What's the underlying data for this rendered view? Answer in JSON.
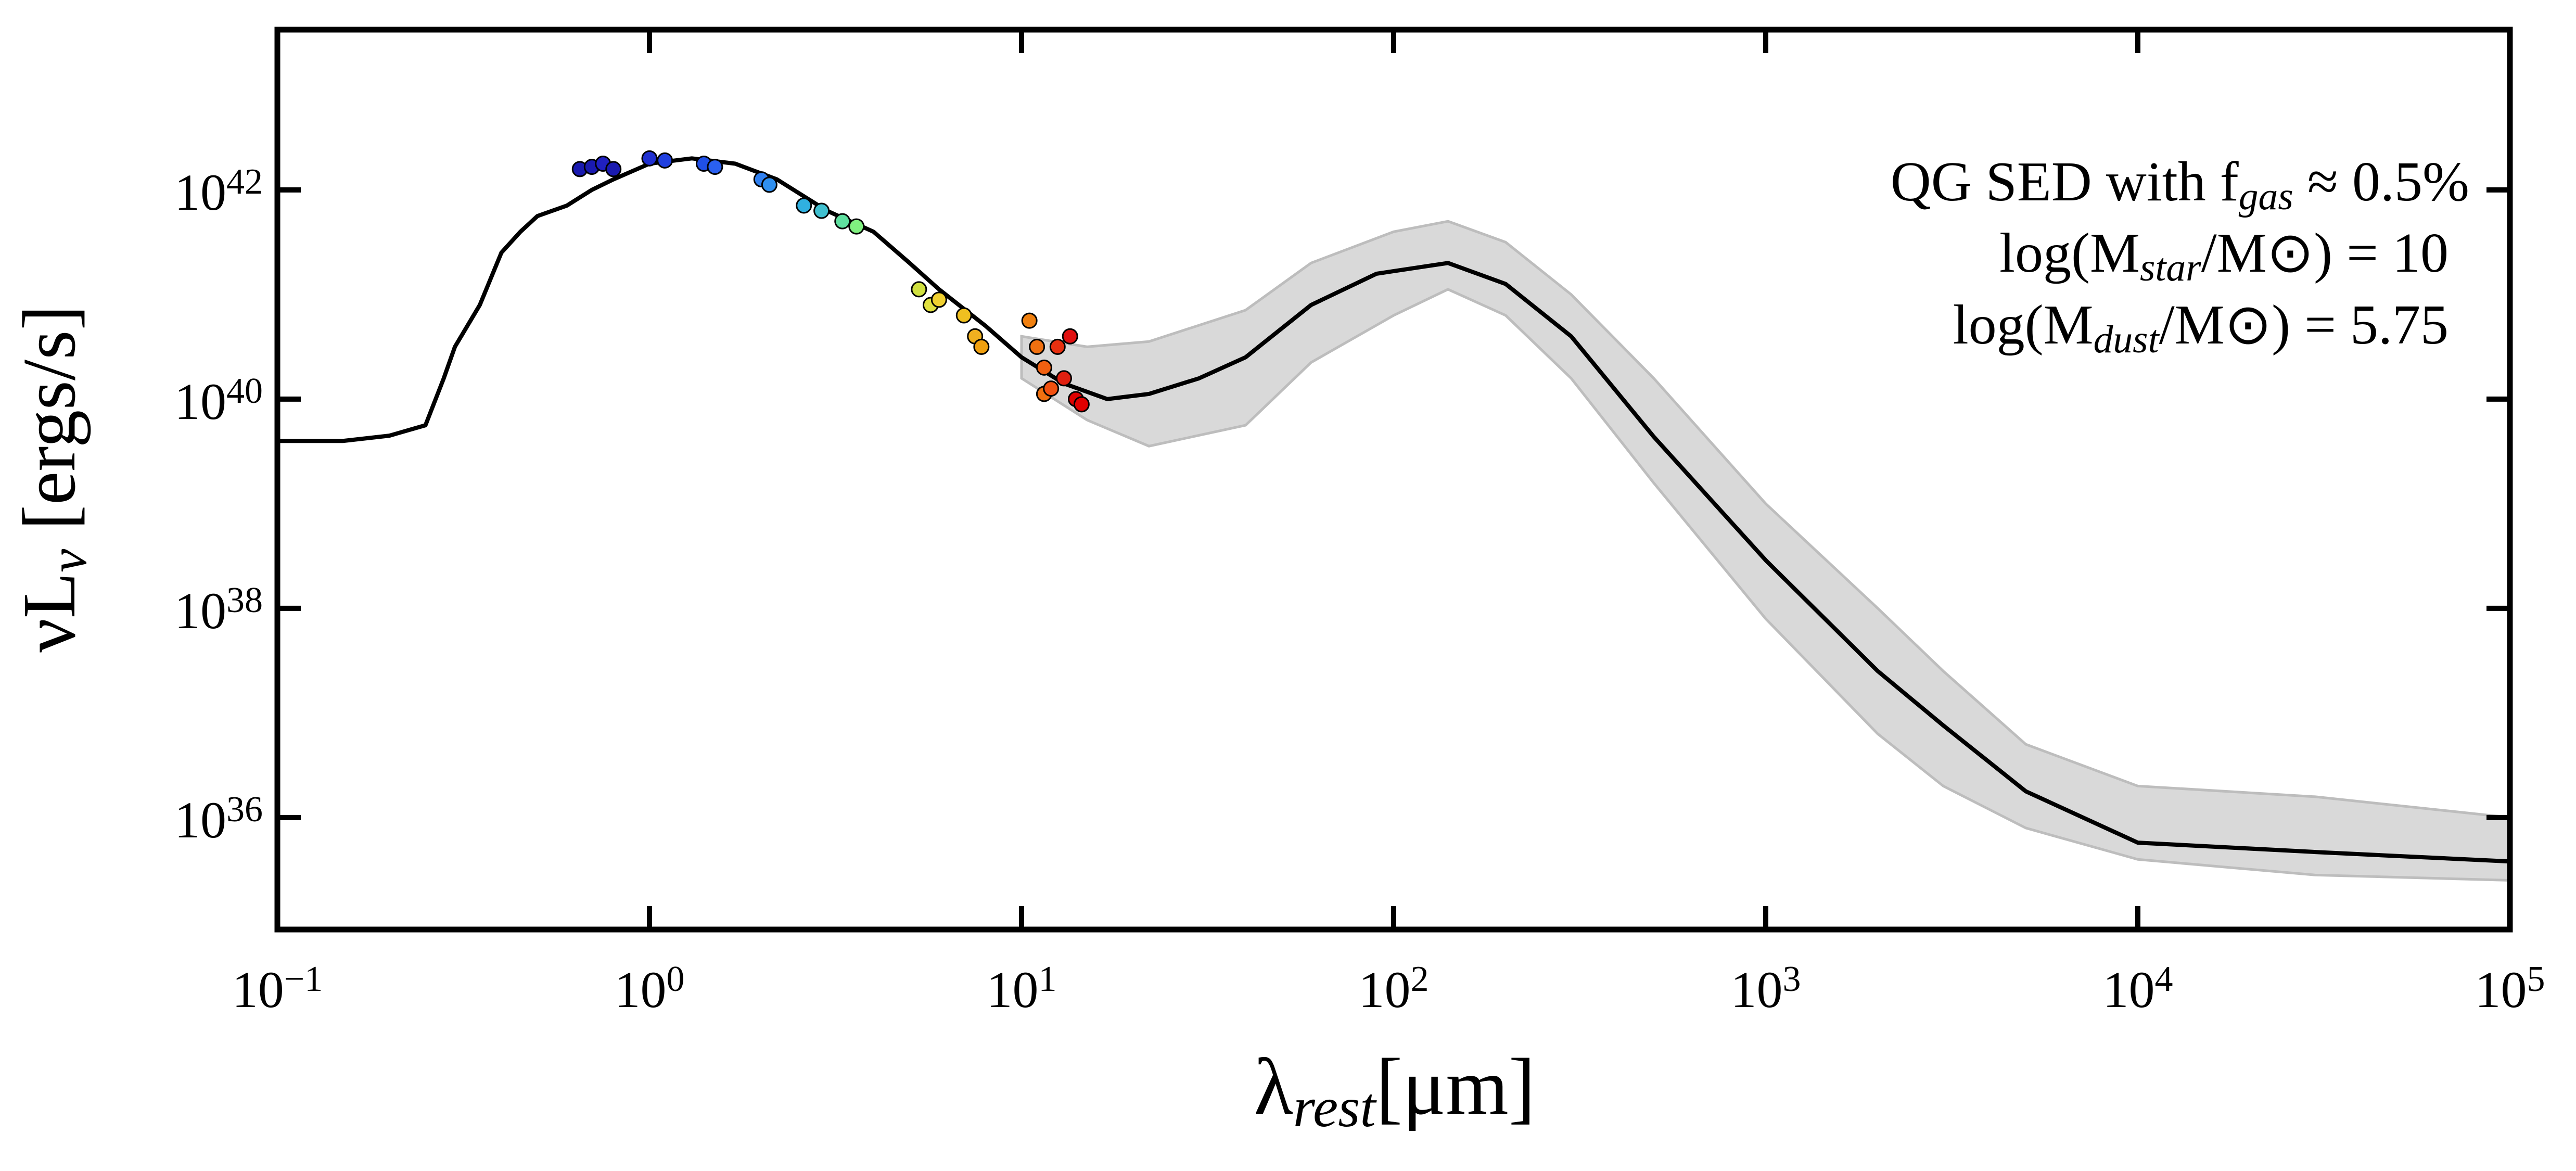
{
  "chart_data": {
    "type": "line",
    "xlabel": "λ_{rest}[μm]",
    "ylabel": "νL_{ν} [ergs/s]",
    "annotations": [
      "QG SED with f_{gas} ≈ 0.5%",
      "log(M_{star}/M⊙) = 10",
      "log(M_{dust}/M⊙) = 5.75"
    ],
    "xscale": "log",
    "yscale": "log",
    "xlim": [
      0.1,
      100000
    ],
    "ylim": [
      8.5e+34,
      3.4e+43
    ],
    "xticks": [
      {
        "value": 0.1,
        "label": "10^{−1}"
      },
      {
        "value": 1,
        "label": "10^{0}"
      },
      {
        "value": 10,
        "label": "10^{1}"
      },
      {
        "value": 100,
        "label": "10^{2}"
      },
      {
        "value": 1000,
        "label": "10^{3}"
      },
      {
        "value": 10000,
        "label": "10^{4}"
      },
      {
        "value": 100000,
        "label": "10^{5}"
      }
    ],
    "yticks": [
      {
        "value": 1e+36,
        "label": "10^{36}"
      },
      {
        "value": 1e+38,
        "label": "10^{38}"
      },
      {
        "value": 1e+40,
        "label": "10^{40}"
      },
      {
        "value": 1e+42,
        "label": "10^{42}"
      }
    ],
    "color": "#000000",
    "x": [
      0.1,
      0.15,
      0.2,
      0.25,
      0.28,
      0.3,
      0.35,
      0.4,
      0.45,
      0.5,
      0.6,
      0.7,
      0.8,
      1.0,
      1.3,
      1.7,
      2.2,
      3,
      4,
      5,
      6,
      8,
      10,
      13,
      17,
      22,
      30,
      40,
      60,
      90,
      140,
      200,
      300,
      500,
      1000,
      2000,
      3000,
      5000,
      10000,
      30000,
      100000
    ],
    "values": [
      3.98e+39,
      3.98e+39,
      4.47e+39,
      5.62e+39,
      1.58e+40,
      3.16e+40,
      7.94e+40,
      2.51e+41,
      3.98e+41,
      5.62e+41,
      7.08e+41,
      1e+42,
      1.26e+42,
      1.78e+42,
      2e+42,
      1.78e+42,
      1.26e+42,
      6.31e+41,
      3.98e+41,
      2e+41,
      1.12e+41,
      5.01e+40,
      2.51e+40,
      1.41e+40,
      1e+40,
      1.12e+40,
      1.58e+40,
      2.51e+40,
      7.94e+40,
      1.58e+41,
      2e+41,
      1.26e+41,
      3.98e+40,
      4.37e+39,
      2.88e+38,
      2.51e+37,
      7.59e+36,
      1.78e+36,
      5.75e+35,
      4.68e+35,
      3.8e+35
    ],
    "band": {
      "color": "#d9d9d9",
      "edge_color": "#bdbdbd",
      "x": [
        10,
        15,
        22,
        40,
        60,
        100,
        140,
        200,
        300,
        500,
        1000,
        2000,
        3000,
        5000,
        10000,
        30000,
        100000
      ],
      "lower": [
        1.58e+40,
        6.31e+39,
        3.55e+39,
        5.62e+39,
        2.24e+40,
        6.31e+40,
        1.12e+41,
        6.31e+40,
        1.58e+40,
        1.58e+39,
        7.94e+37,
        6.31e+36,
        2e+36,
        7.94e+35,
        3.98e+35,
        2.82e+35,
        2.51e+35
      ],
      "upper": [
        3.98e+40,
        3.16e+40,
        3.55e+40,
        7.08e+40,
        2e+41,
        3.98e+41,
        5.01e+41,
        3.16e+41,
        1e+41,
        1.58e+40,
        1e+39,
        1e+38,
        2.51e+37,
        5.01e+36,
        2e+36,
        1.58e+36,
        1e+36
      ]
    },
    "points": {
      "x": [
        0.65,
        0.7,
        0.75,
        0.8,
        1.0,
        1.1,
        1.4,
        1.5,
        2.0,
        2.1,
        2.6,
        2.9,
        3.3,
        3.6,
        5.3,
        5.7,
        6.0,
        7.0,
        7.5,
        7.8,
        10.5,
        11,
        11.5,
        11.5,
        12,
        12.5,
        13,
        13.5,
        14,
        14.5
      ],
      "y": [
        1.58e+42,
        1.66e+42,
        1.78e+42,
        1.58e+42,
        2e+42,
        1.91e+42,
        1.78e+42,
        1.66e+42,
        1.26e+42,
        1.12e+42,
        7.08e+41,
        6.31e+41,
        5.01e+41,
        4.47e+41,
        1.12e+41,
        7.94e+40,
        8.91e+40,
        6.31e+40,
        3.98e+40,
        3.16e+40,
        5.62e+40,
        3.16e+40,
        2e+40,
        1.12e+40,
        1.26e+40,
        3.16e+40,
        1.58e+40,
        3.98e+40,
        1e+40,
        8.91e+39
      ],
      "colors": [
        "#1a1ab0",
        "#1a1ab0",
        "#2020c0",
        "#1a1ab0",
        "#2030d0",
        "#2040e0",
        "#2050e8",
        "#2a60f0",
        "#3080f0",
        "#3090f0",
        "#30b0e0",
        "#40c0d0",
        "#60e0a0",
        "#80f080",
        "#d0e040",
        "#e0e040",
        "#f0d030",
        "#f0c020",
        "#f0b020",
        "#f0a010",
        "#f08010",
        "#f07010",
        "#f06010",
        "#f07010",
        "#f05010",
        "#e83010",
        "#e02010",
        "#e01010",
        "#e00000",
        "#e00000"
      ]
    }
  }
}
